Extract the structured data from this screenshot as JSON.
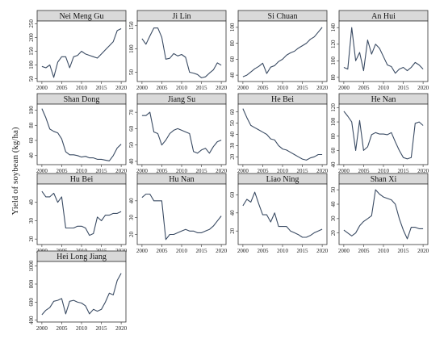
{
  "chart_data": {
    "type": "line",
    "ylabel": "Yield of soybean (kg/ha)",
    "x": [
      2000,
      2001,
      2002,
      2003,
      2004,
      2005,
      2006,
      2007,
      2008,
      2009,
      2010,
      2011,
      2012,
      2013,
      2014,
      2015,
      2016,
      2017,
      2018,
      2019,
      2020
    ],
    "xticks": [
      2000,
      2005,
      2010,
      2015,
      2020
    ],
    "panels": [
      {
        "title": "Nei Meng Gu",
        "ylim": [
          40,
          260
        ],
        "yticks": [
          50,
          100,
          150,
          200,
          250
        ],
        "values": [
          95,
          90,
          100,
          55,
          110,
          130,
          130,
          90,
          130,
          135,
          150,
          140,
          135,
          130,
          125,
          140,
          155,
          170,
          185,
          225,
          232
        ]
      },
      {
        "title": "Ji Lin",
        "ylim": [
          30,
          160
        ],
        "yticks": [
          50,
          100,
          150
        ],
        "values": [
          122,
          110,
          128,
          145,
          145,
          125,
          78,
          80,
          90,
          85,
          88,
          82,
          50,
          48,
          45,
          38,
          40,
          48,
          55,
          70,
          65
        ]
      },
      {
        "title": "Si Chuan",
        "ylim": [
          32,
          108
        ],
        "yticks": [
          40,
          60,
          80,
          100
        ],
        "values": [
          38,
          40,
          44,
          48,
          51,
          55,
          42,
          50,
          52,
          57,
          60,
          65,
          68,
          70,
          74,
          77,
          80,
          85,
          88,
          94,
          100
        ]
      },
      {
        "title": "An Hui",
        "ylim": [
          75,
          148
        ],
        "yticks": [
          80,
          100,
          120,
          140
        ],
        "values": [
          92,
          90,
          140,
          100,
          110,
          88,
          125,
          108,
          120,
          115,
          105,
          95,
          93,
          85,
          90,
          92,
          88,
          92,
          98,
          95,
          90
        ]
      },
      {
        "title": "Shan Dong",
        "ylim": [
          28,
          108
        ],
        "yticks": [
          40,
          60,
          80,
          100
        ],
        "values": [
          102,
          90,
          75,
          72,
          70,
          62,
          45,
          41,
          41,
          40,
          38,
          39,
          37,
          37,
          35,
          35,
          34,
          33,
          40,
          50,
          55
        ]
      },
      {
        "title": "Jiang Su",
        "ylim": [
          38,
          75
        ],
        "yticks": [
          40,
          50,
          60,
          70
        ],
        "values": [
          68,
          68,
          70,
          58,
          57,
          50,
          53,
          57,
          59,
          60,
          59,
          58,
          57,
          46,
          45,
          47,
          48,
          45,
          49,
          52,
          53
        ]
      },
      {
        "title": "He Bei",
        "ylim": [
          13,
          67
        ],
        "yticks": [
          20,
          30,
          40,
          50,
          60
        ],
        "values": [
          63,
          55,
          48,
          46,
          44,
          42,
          40,
          36,
          35,
          30,
          27,
          26,
          24,
          22,
          20,
          18,
          17,
          19,
          20,
          22,
          22
        ]
      },
      {
        "title": "He Nan",
        "ylim": [
          40,
          125
        ],
        "yticks": [
          40,
          60,
          80,
          100,
          120
        ],
        "values": [
          115,
          108,
          100,
          60,
          102,
          60,
          65,
          82,
          85,
          83,
          83,
          82,
          85,
          72,
          60,
          50,
          48,
          50,
          98,
          100,
          95
        ]
      },
      {
        "title": "Hu Bei",
        "ylim": [
          17,
          50
        ],
        "yticks": [
          20,
          30,
          40
        ],
        "values": [
          46,
          43,
          43,
          45,
          40,
          43,
          26,
          26,
          26,
          27,
          27,
          26,
          22,
          23,
          32,
          30,
          33,
          33,
          34,
          34,
          35
        ]
      },
      {
        "title": "Hu Nan",
        "ylim": [
          14,
          50
        ],
        "yticks": [
          20,
          30,
          40
        ],
        "values": [
          42,
          44,
          44,
          40,
          40,
          40,
          17,
          20,
          20,
          21,
          22,
          23,
          22,
          22,
          21,
          21,
          22,
          23,
          25,
          28,
          31
        ]
      },
      {
        "title": "Liao Ning",
        "ylim": [
          5,
          72
        ],
        "yticks": [
          20,
          40,
          60
        ],
        "values": [
          48,
          55,
          52,
          63,
          50,
          38,
          38,
          30,
          40,
          25,
          25,
          25,
          20,
          18,
          16,
          13,
          13,
          15,
          18,
          20,
          22
        ]
      },
      {
        "title": "Shan Xi",
        "ylim": [
          12,
          54
        ],
        "yticks": [
          20,
          30,
          40,
          50
        ],
        "values": [
          22,
          20,
          18,
          20,
          25,
          28,
          30,
          32,
          50,
          47,
          45,
          44,
          43,
          40,
          30,
          22,
          16,
          24,
          24,
          23,
          23
        ]
      },
      {
        "title": "Hei Long Jiang",
        "ylim": [
          380,
          1050
        ],
        "yticks": [
          400,
          600,
          800,
          1000
        ],
        "values": [
          460,
          510,
          540,
          610,
          620,
          640,
          470,
          610,
          620,
          600,
          590,
          560,
          470,
          520,
          500,
          520,
          600,
          700,
          680,
          840,
          920
        ]
      }
    ]
  }
}
